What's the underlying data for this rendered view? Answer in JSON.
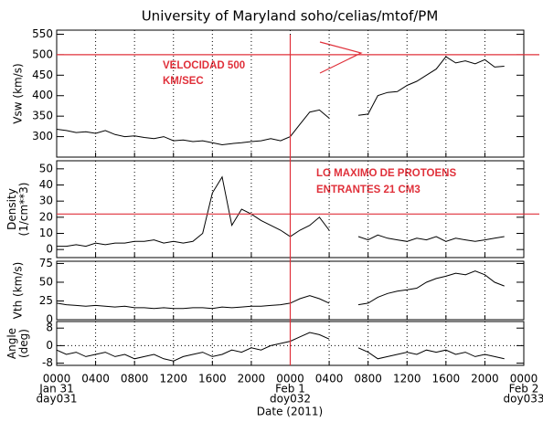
{
  "title": "University of Maryland  soho/celias/mtof/PM",
  "xlabel": "Date (2011)",
  "vertical_marker": {
    "x": 24,
    "color": "#e0303a"
  },
  "chart_data": [
    {
      "type": "line",
      "ylabel": [
        "Vsw (km/s)"
      ],
      "xlim": [
        0,
        48
      ],
      "xticks": [
        0,
        4,
        8,
        12,
        16,
        20,
        24,
        28,
        32,
        36,
        40,
        44,
        48
      ],
      "ylim": [
        250,
        560
      ],
      "yticks": [
        300,
        350,
        400,
        450,
        500,
        550
      ],
      "hline": {
        "value": 500,
        "color": "#e0303a"
      },
      "annotation": [
        "VELOCIDAD 500",
        "KM/SEC"
      ],
      "x": [
        0,
        1,
        2,
        3,
        4,
        5,
        6,
        7,
        8,
        9,
        10,
        11,
        12,
        13,
        14,
        15,
        16,
        17,
        18,
        19,
        20,
        21,
        22,
        23,
        24,
        25,
        26,
        27,
        28,
        29,
        30,
        31,
        32,
        33,
        34,
        35,
        36,
        37,
        38,
        39,
        40,
        41,
        42,
        43,
        44,
        45,
        46
      ],
      "series": [
        {
          "color": "#000000",
          "values": [
            318,
            315,
            310,
            312,
            308,
            315,
            305,
            300,
            302,
            298,
            295,
            300,
            290,
            292,
            288,
            290,
            285,
            280,
            283,
            285,
            288,
            290,
            295,
            290,
            300,
            330,
            360,
            365,
            345,
            null,
            null,
            352,
            355,
            400,
            408,
            410,
            425,
            435,
            450,
            465,
            495,
            480,
            485,
            478,
            488,
            470,
            472
          ]
        }
      ]
    },
    {
      "type": "line",
      "ylabel": [
        "Density",
        "(1/cm**3)"
      ],
      "xlim": [
        0,
        48
      ],
      "xticks": [
        0,
        4,
        8,
        12,
        16,
        20,
        24,
        28,
        32,
        36,
        40,
        44,
        48
      ],
      "ylim": [
        -5,
        55
      ],
      "yticks": [
        0,
        10,
        20,
        30,
        40,
        50
      ],
      "hline": {
        "value": 22,
        "color": "#e0303a"
      },
      "annotation": [
        "LO MAXIMO DE PROTOENS",
        "ENTRANTES 21 CM3"
      ],
      "x": [
        0,
        1,
        2,
        3,
        4,
        5,
        6,
        7,
        8,
        9,
        10,
        11,
        12,
        13,
        14,
        15,
        16,
        17,
        18,
        19,
        20,
        21,
        22,
        23,
        24,
        25,
        26,
        27,
        28,
        29,
        30,
        31,
        32,
        33,
        34,
        35,
        36,
        37,
        38,
        39,
        40,
        41,
        42,
        43,
        44,
        45,
        46
      ],
      "series": [
        {
          "color": "#000000",
          "values": [
            2,
            2,
            3,
            2,
            4,
            3,
            4,
            4,
            5,
            5,
            6,
            4,
            5,
            4,
            5,
            10,
            35,
            45,
            15,
            25,
            22,
            18,
            15,
            12,
            8,
            12,
            15,
            20,
            12,
            null,
            null,
            8,
            6,
            9,
            7,
            6,
            5,
            7,
            6,
            8,
            5,
            7,
            6,
            5,
            6,
            7,
            8
          ]
        }
      ]
    },
    {
      "type": "line",
      "ylabel": [
        "Vth  (km/s)"
      ],
      "xlim": [
        0,
        48
      ],
      "xticks": [
        0,
        4,
        8,
        12,
        16,
        20,
        24,
        28,
        32,
        36,
        40,
        44,
        48
      ],
      "ylim": [
        0,
        78
      ],
      "yticks": [
        0,
        25,
        50,
        75
      ],
      "x": [
        0,
        1,
        2,
        3,
        4,
        5,
        6,
        7,
        8,
        9,
        10,
        11,
        12,
        13,
        14,
        15,
        16,
        17,
        18,
        19,
        20,
        21,
        22,
        23,
        24,
        25,
        26,
        27,
        28,
        29,
        30,
        31,
        32,
        33,
        34,
        35,
        36,
        37,
        38,
        39,
        40,
        41,
        42,
        43,
        44,
        45,
        46
      ],
      "series": [
        {
          "color": "#000000",
          "values": [
            22,
            20,
            19,
            18,
            19,
            18,
            17,
            18,
            16,
            16,
            15,
            16,
            15,
            15,
            16,
            16,
            15,
            17,
            16,
            17,
            18,
            18,
            19,
            20,
            22,
            28,
            32,
            28,
            22,
            null,
            null,
            20,
            22,
            30,
            35,
            38,
            40,
            42,
            50,
            55,
            58,
            62,
            60,
            65,
            60,
            50,
            45
          ]
        }
      ]
    },
    {
      "type": "line",
      "ylabel": [
        "Angle",
        "(deg)"
      ],
      "xlim": [
        0,
        48
      ],
      "xticks": [
        {
          "value": 0,
          "label": "0000"
        },
        {
          "value": 4,
          "label": "0400"
        },
        {
          "value": 8,
          "label": "0800"
        },
        {
          "value": 12,
          "label": "1200"
        },
        {
          "value": 16,
          "label": "1600"
        },
        {
          "value": 20,
          "label": "2000"
        },
        {
          "value": 24,
          "label": "0000"
        },
        {
          "value": 28,
          "label": "0400"
        },
        {
          "value": 32,
          "label": "0800"
        },
        {
          "value": 36,
          "label": "1200"
        },
        {
          "value": 40,
          "label": "1600"
        },
        {
          "value": 44,
          "label": "2000"
        },
        {
          "value": 48,
          "label": "0000"
        }
      ],
      "day_labels": [
        {
          "value": 0,
          "date": "Jan 31",
          "doy": "day031"
        },
        {
          "value": 24,
          "date": "Feb 1",
          "doy": "doy032"
        },
        {
          "value": 48,
          "date": "Feb 2",
          "doy": "doy033"
        }
      ],
      "ylim": [
        -9,
        11
      ],
      "yticks": [
        -8,
        0,
        8
      ],
      "ref_line": 0,
      "x": [
        0,
        1,
        2,
        3,
        4,
        5,
        6,
        7,
        8,
        9,
        10,
        11,
        12,
        13,
        14,
        15,
        16,
        17,
        18,
        19,
        20,
        21,
        22,
        23,
        24,
        25,
        26,
        27,
        28,
        29,
        30,
        31,
        32,
        33,
        34,
        35,
        36,
        37,
        38,
        39,
        40,
        41,
        42,
        43,
        44,
        45,
        46
      ],
      "series": [
        {
          "color": "#000000",
          "values": [
            -2,
            -4,
            -3,
            -5,
            -4,
            -3,
            -5,
            -4,
            -6,
            -5,
            -4,
            -6,
            -7,
            -5,
            -4,
            -3,
            -5,
            -4,
            -2,
            -3,
            -1,
            -2,
            0,
            1,
            2,
            4,
            6,
            5,
            3,
            null,
            null,
            -1,
            -3,
            -6,
            -5,
            -4,
            -3,
            -4,
            -2,
            -3,
            -2,
            -4,
            -3,
            -5,
            -4,
            -5,
            -6
          ]
        }
      ]
    }
  ]
}
